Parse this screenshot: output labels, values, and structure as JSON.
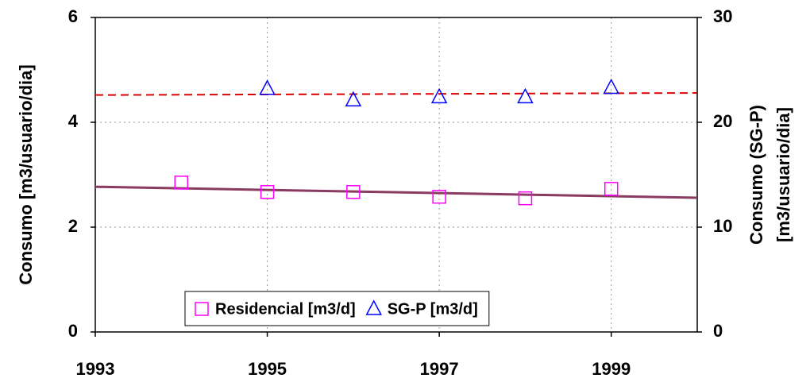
{
  "chart_data": {
    "type": "scatter",
    "ylabel": "Consumo [m3/usuario/dia]",
    "y2label": [
      "Consumo (SG-P)",
      "[m3/usuario/dia]"
    ],
    "xlim": [
      1993,
      2000
    ],
    "xticks": [
      1993,
      1995,
      1997,
      1999
    ],
    "ylim": [
      0,
      6
    ],
    "yticks": [
      0,
      2,
      4,
      6
    ],
    "y2lim": [
      0,
      30
    ],
    "y2ticks": [
      0,
      10,
      20,
      30
    ],
    "grid": true,
    "legend": "bottom",
    "series": [
      {
        "name": "Residencial [m3/d]",
        "color": "#ff00ff",
        "marker": "square",
        "axis": "y",
        "x": [
          1994,
          1995,
          1996,
          1997,
          1998,
          1999
        ],
        "values": [
          2.85,
          2.67,
          2.67,
          2.58,
          2.55,
          2.73
        ]
      },
      {
        "name": "SG-P [m3/d]",
        "color": "#0000ff",
        "marker": "triangle",
        "axis": "y2",
        "x": [
          1995,
          1996,
          1997,
          1998,
          1999
        ],
        "values": [
          23.2,
          22.1,
          22.4,
          22.4,
          23.3
        ]
      }
    ],
    "trendlines": [
      {
        "color": "#8b3a62",
        "dash": false,
        "axis": "y",
        "x": [
          1993,
          2000
        ],
        "values": [
          2.77,
          2.56
        ]
      },
      {
        "color": "#dd0000",
        "dash": true,
        "axis": "y2",
        "x": [
          1993,
          2000
        ],
        "values": [
          22.6,
          22.8
        ]
      }
    ]
  }
}
